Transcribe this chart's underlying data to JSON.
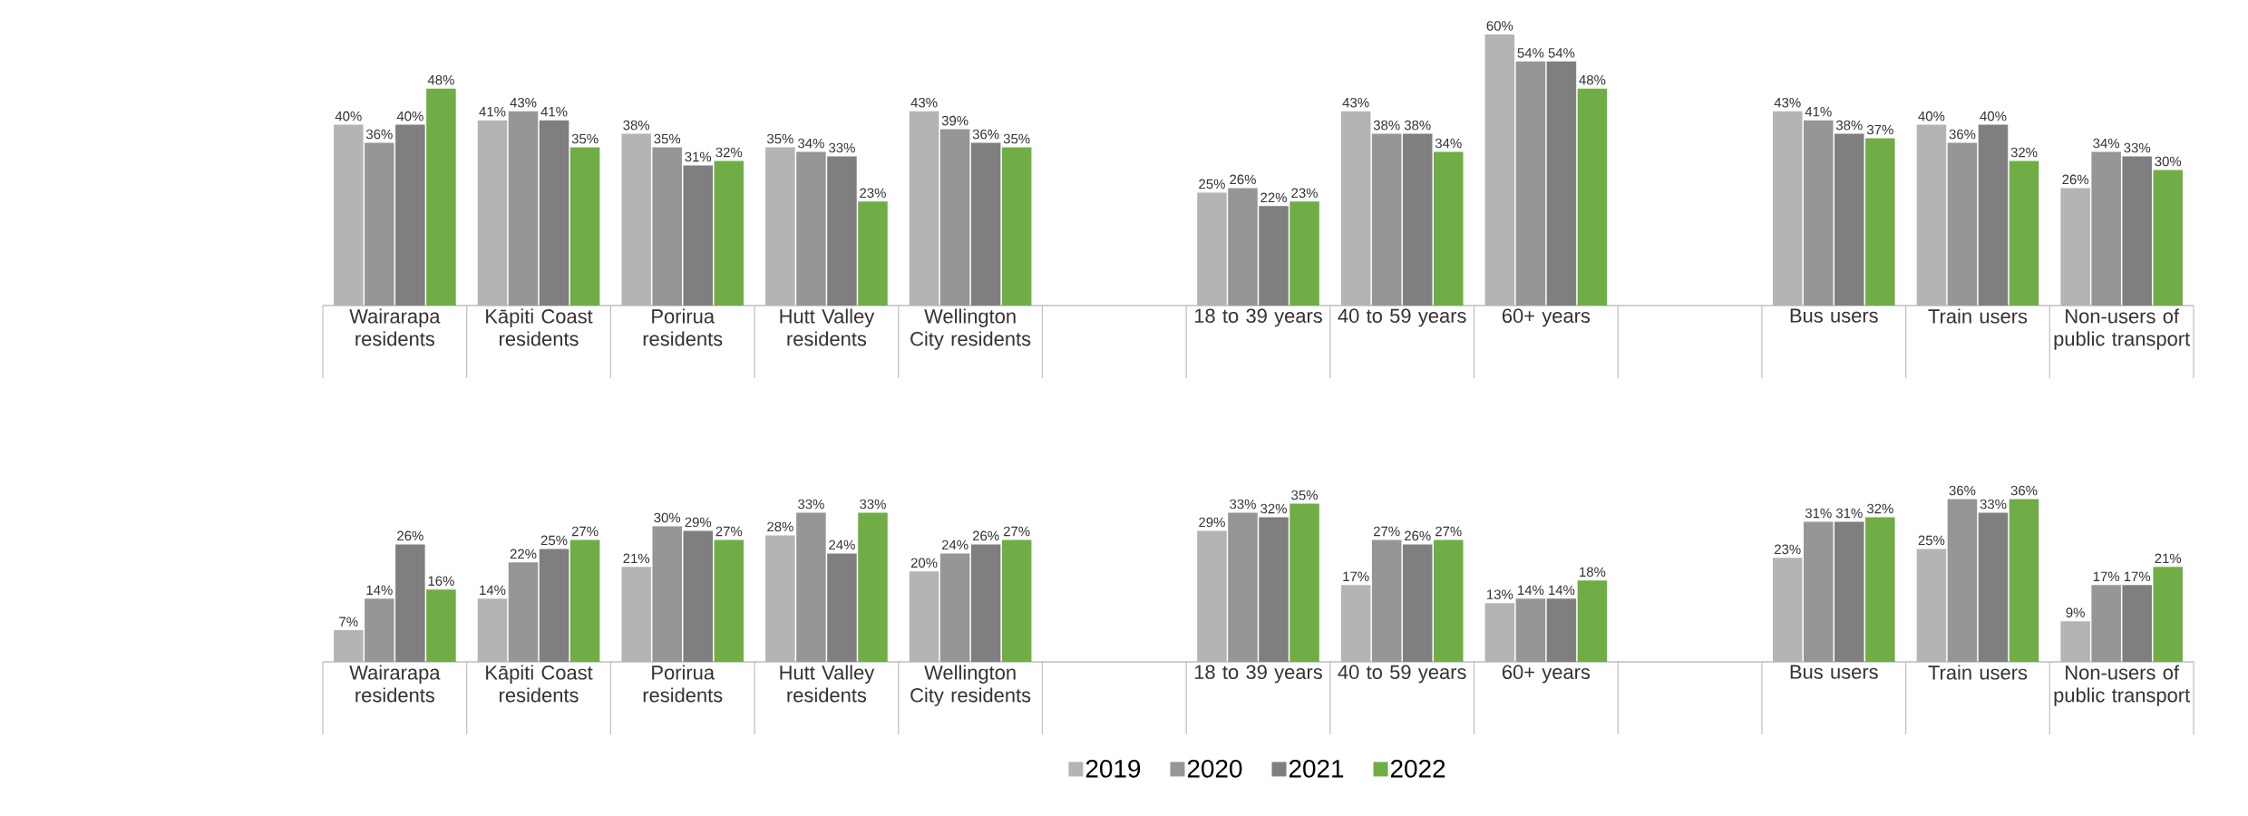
{
  "chart_data": [
    {
      "type": "bar",
      "legend": false,
      "categories": [
        "Wairarapa residents",
        "Kāpiti Coast residents",
        "Porirua residents",
        "Hutt Valley residents",
        "Wellington City residents",
        null,
        "18 to 39 years",
        "40 to 59 years",
        "60+ years",
        null,
        "Bus users",
        "Train users",
        "Non-users of public transport"
      ],
      "series": [
        {
          "color": "#b4b4b4",
          "values": [
            40,
            41,
            38,
            35,
            43,
            null,
            25,
            43,
            60,
            null,
            43,
            40,
            26
          ],
          "value_labels": [
            "40%",
            "41%",
            "38%",
            "35%",
            "43%",
            null,
            "25%",
            "43%",
            "60%",
            null,
            "43%",
            "40%",
            "26%"
          ]
        },
        {
          "color": "#969696",
          "values": [
            36,
            43,
            35,
            34,
            39,
            null,
            26,
            38,
            54,
            null,
            41,
            36,
            34
          ],
          "value_labels": [
            "36%",
            "43%",
            "35%",
            "34%",
            "39%",
            null,
            "26%",
            "38%",
            "54%",
            null,
            "41%",
            "36%",
            "34%"
          ]
        },
        {
          "color": "#7f7f7f",
          "values": [
            40,
            41,
            31,
            33,
            36,
            null,
            22,
            38,
            54,
            null,
            38,
            40,
            33
          ],
          "value_labels": [
            "40%",
            "41%",
            "31%",
            "33%",
            "36%",
            null,
            "22%",
            "38%",
            "54%",
            null,
            "38%",
            "40%",
            "33%"
          ]
        },
        {
          "color": "#70ad47",
          "values": [
            48,
            35,
            32,
            23,
            35,
            null,
            23,
            34,
            48,
            null,
            37,
            32,
            30
          ],
          "value_labels": [
            "48%",
            "35%",
            "32%",
            "23%",
            "35%",
            null,
            "23%",
            "34%",
            "48%",
            null,
            "37%",
            "32%",
            "30%"
          ]
        }
      ]
    },
    {
      "type": "bar",
      "legend": "bottom",
      "categories": [
        "Wairarapa residents",
        "Kāpiti Coast residents",
        "Porirua residents",
        "Hutt Valley residents",
        "Wellington City residents",
        null,
        "18 to 39 years",
        "40 to 59 years",
        "60+ years",
        null,
        "Bus users",
        "Train users",
        "Non-users of public transport"
      ],
      "series": [
        {
          "name": "2019",
          "color": "#b4b4b4",
          "values": [
            7,
            14,
            21,
            28,
            20,
            null,
            29,
            17,
            13,
            null,
            23,
            25,
            9
          ],
          "value_labels": [
            "7%",
            "14%",
            "21%",
            "28%",
            "20%",
            null,
            "29%",
            "17%",
            "13%",
            null,
            "23%",
            "25%",
            "9%"
          ]
        },
        {
          "name": "2020",
          "color": "#969696",
          "values": [
            14,
            22,
            30,
            33,
            24,
            null,
            33,
            27,
            14,
            null,
            31,
            36,
            17
          ],
          "value_labels": [
            "14%",
            "22%",
            "30%",
            "33%",
            "24%",
            null,
            "33%",
            "27%",
            "14%",
            null,
            "31%",
            "36%",
            "17%"
          ]
        },
        {
          "name": "2021",
          "color": "#7f7f7f",
          "values": [
            26,
            25,
            29,
            24,
            26,
            null,
            32,
            26,
            14,
            null,
            31,
            33,
            17
          ],
          "value_labels": [
            "26%",
            "25%",
            "29%",
            "24%",
            "26%",
            null,
            "32%",
            "26%",
            "14%",
            null,
            "31%",
            "33%",
            "17%"
          ]
        },
        {
          "name": "2022",
          "color": "#70ad47",
          "values": [
            16,
            27,
            27,
            33,
            27,
            null,
            35,
            27,
            18,
            null,
            32,
            36,
            21
          ],
          "value_labels": [
            "16%",
            "27%",
            "27%",
            "33%",
            "27%",
            null,
            "35%",
            "27%",
            "18%",
            null,
            "32%",
            "36%",
            "21%"
          ]
        }
      ]
    }
  ]
}
